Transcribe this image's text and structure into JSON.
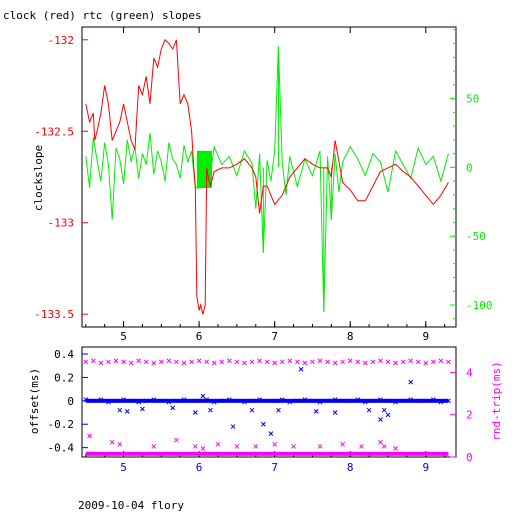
{
  "title": "clock (red) rtc (green) slopes",
  "footer": "2009-10-04 flory",
  "colors": {
    "frame": "#000000",
    "clock": "#ff0000",
    "rtc": "#00ee00",
    "offset": "#0000ff",
    "rnd_trip": "#ff00ff"
  },
  "chart_data": [
    {
      "type": "line",
      "title": "clock (red) rtc (green) slopes",
      "xlabel": "",
      "ylabel": "clockslope",
      "y2label": "",
      "xlim": [
        4.45,
        9.4
      ],
      "ylim": [
        -133.57,
        -131.93
      ],
      "y2lim": [
        -116,
        102
      ],
      "xticks": [
        "5",
        "6",
        "7",
        "8",
        "9"
      ],
      "yticks": [
        "-132",
        "-132.5",
        "-133",
        "-133.5"
      ],
      "y2ticks": [
        "50",
        "0",
        "-50",
        "-100"
      ],
      "series": [
        {
          "name": "clock",
          "axis": "left",
          "color": "#ff0000",
          "x": [
            4.5,
            4.55,
            4.6,
            4.62,
            4.65,
            4.7,
            4.75,
            4.8,
            4.85,
            4.9,
            4.95,
            5.0,
            5.05,
            5.1,
            5.15,
            5.2,
            5.25,
            5.3,
            5.35,
            5.4,
            5.45,
            5.5,
            5.55,
            5.6,
            5.65,
            5.7,
            5.75,
            5.8,
            5.85,
            5.9,
            5.93,
            5.95,
            5.97,
            6.0,
            6.02,
            6.05,
            6.08,
            6.1,
            6.12,
            6.15,
            6.2,
            6.3,
            6.4,
            6.5,
            6.6,
            6.7,
            6.75,
            6.8,
            6.85,
            6.9,
            7.0,
            7.1,
            7.2,
            7.3,
            7.4,
            7.5,
            7.6,
            7.7,
            7.75,
            7.8,
            7.9,
            8.0,
            8.1,
            8.2,
            8.3,
            8.4,
            8.5,
            8.6,
            8.7,
            8.8,
            8.9,
            9.0,
            9.1,
            9.2,
            9.3
          ],
          "y": [
            -132.35,
            -132.45,
            -132.4,
            -132.55,
            -132.5,
            -132.4,
            -132.25,
            -132.35,
            -132.55,
            -132.5,
            -132.45,
            -132.35,
            -132.45,
            -132.55,
            -132.6,
            -132.25,
            -132.3,
            -132.2,
            -132.35,
            -132.1,
            -132.15,
            -132.05,
            -132.0,
            -132.02,
            -132.05,
            -132.0,
            -132.35,
            -132.3,
            -132.35,
            -132.5,
            -132.7,
            -132.8,
            -133.4,
            -133.48,
            -133.45,
            -133.5,
            -133.45,
            -132.7,
            -132.75,
            -132.8,
            -132.72,
            -132.7,
            -132.7,
            -132.68,
            -132.65,
            -132.7,
            -132.75,
            -132.95,
            -132.8,
            -132.8,
            -132.9,
            -132.85,
            -132.75,
            -132.7,
            -132.65,
            -132.68,
            -132.7,
            -132.7,
            -132.75,
            -132.55,
            -132.78,
            -132.82,
            -132.88,
            -132.88,
            -132.8,
            -132.72,
            -132.7,
            -132.68,
            -132.72,
            -132.75,
            -132.8,
            -132.85,
            -132.9,
            -132.85,
            -132.78
          ]
        },
        {
          "name": "rtc",
          "axis": "right",
          "color": "#00ee00",
          "x": [
            4.5,
            4.55,
            4.6,
            4.65,
            4.7,
            4.75,
            4.8,
            4.85,
            4.9,
            4.95,
            5.0,
            5.05,
            5.1,
            5.15,
            5.2,
            5.25,
            5.3,
            5.35,
            5.4,
            5.45,
            5.5,
            5.55,
            5.6,
            5.65,
            5.7,
            5.75,
            5.8,
            5.85,
            5.9,
            5.95,
            6.0,
            6.05,
            6.1,
            6.15,
            6.2,
            6.3,
            6.4,
            6.5,
            6.6,
            6.7,
            6.75,
            6.8,
            6.85,
            6.9,
            6.95,
            7.0,
            7.05,
            7.1,
            7.15,
            7.2,
            7.3,
            7.4,
            7.5,
            7.6,
            7.65,
            7.7,
            7.75,
            7.8,
            7.85,
            7.9,
            8.0,
            8.1,
            8.2,
            8.3,
            8.4,
            8.5,
            8.6,
            8.7,
            8.8,
            8.9,
            9.0,
            9.1,
            9.2,
            9.3
          ],
          "y": [
            8,
            -15,
            22,
            5,
            -10,
            18,
            2,
            -38,
            14,
            6,
            -12,
            20,
            4,
            15,
            -8,
            10,
            2,
            25,
            -5,
            12,
            4,
            -10,
            18,
            6,
            2,
            -8,
            16,
            4,
            12,
            -15,
            -15,
            10,
            -15,
            -5,
            15,
            2,
            8,
            -6,
            12,
            3,
            -30,
            10,
            -62,
            5,
            -10,
            12,
            88,
            4,
            -20,
            8,
            -14,
            6,
            -6,
            12,
            -105,
            8,
            -38,
            10,
            -18,
            4,
            15,
            6,
            -6,
            10,
            4,
            -18,
            12,
            2,
            -8,
            14,
            2,
            8,
            -10,
            10
          ]
        }
      ]
    },
    {
      "type": "scatter",
      "xlabel": "",
      "ylabel": "offset(ms)",
      "y2label": "rnd-trip(ms)",
      "xlim": [
        4.45,
        9.4
      ],
      "ylim": [
        -0.48,
        0.46
      ],
      "y2lim": [
        0,
        5.2
      ],
      "xticks": [
        "5",
        "6",
        "7",
        "8",
        "9"
      ],
      "yticks": [
        "0.4",
        "0.2",
        "0",
        "-0.2",
        "-0.4"
      ],
      "y2ticks": [
        "4",
        "2",
        "0"
      ],
      "series": [
        {
          "name": "offset",
          "axis": "left",
          "color": "#0000ff",
          "marker": "x",
          "x": [
            4.5,
            4.6,
            4.7,
            4.8,
            4.9,
            5.0,
            5.1,
            5.2,
            5.3,
            5.4,
            5.5,
            5.6,
            5.7,
            5.8,
            5.9,
            6.0,
            6.1,
            6.2,
            6.3,
            6.4,
            6.5,
            6.6,
            6.7,
            6.8,
            6.9,
            7.0,
            7.1,
            7.2,
            7.3,
            7.4,
            7.5,
            7.6,
            7.7,
            7.8,
            7.9,
            8.0,
            8.1,
            8.2,
            8.3,
            8.4,
            8.5,
            8.6,
            8.7,
            8.8,
            8.9,
            9.0,
            9.1,
            9.2,
            9.3,
            4.95,
            5.05,
            5.25,
            5.65,
            5.95,
            6.05,
            6.15,
            6.45,
            6.7,
            6.85,
            6.95,
            7.05,
            7.35,
            7.55,
            7.8,
            8.25,
            8.4,
            8.45,
            8.5,
            8.8
          ],
          "y": [
            0.01,
            0.0,
            0.01,
            -0.01,
            0.0,
            0.01,
            0.0,
            -0.01,
            0.0,
            0.01,
            0.0,
            -0.01,
            0.0,
            0.01,
            0.0,
            0.0,
            0.01,
            -0.01,
            0.0,
            0.01,
            0.0,
            -0.01,
            0.0,
            0.01,
            0.0,
            0.0,
            0.01,
            -0.01,
            0.0,
            0.01,
            0.0,
            -0.01,
            0.0,
            0.01,
            0.0,
            0.0,
            0.01,
            -0.01,
            0.0,
            0.01,
            0.0,
            -0.01,
            0.0,
            0.01,
            0.0,
            0.0,
            0.01,
            -0.01,
            0.0,
            -0.08,
            -0.09,
            -0.07,
            -0.06,
            -0.1,
            0.04,
            -0.08,
            -0.22,
            -0.08,
            -0.2,
            -0.28,
            -0.08,
            0.27,
            -0.09,
            -0.1,
            -0.08,
            -0.16,
            -0.08,
            -0.12,
            0.16
          ]
        },
        {
          "name": "rnd-trip",
          "axis": "right",
          "color": "#ff00ff",
          "marker": "x",
          "x": [
            4.5,
            4.6,
            4.7,
            4.8,
            4.9,
            5.0,
            5.1,
            5.2,
            5.3,
            5.4,
            5.5,
            5.6,
            5.7,
            5.8,
            5.9,
            6.0,
            6.1,
            6.2,
            6.3,
            6.4,
            6.5,
            6.6,
            6.7,
            6.8,
            6.9,
            7.0,
            7.1,
            7.2,
            7.3,
            7.4,
            7.5,
            7.6,
            7.7,
            7.8,
            7.9,
            8.0,
            8.1,
            8.2,
            8.3,
            8.4,
            8.5,
            8.6,
            8.7,
            8.8,
            8.9,
            9.0,
            9.1,
            9.2,
            9.3,
            4.55,
            4.85,
            4.95,
            5.4,
            5.7,
            5.95,
            6.05,
            6.25,
            6.5,
            6.75,
            7.0,
            7.25,
            7.6,
            7.9,
            8.15,
            8.4,
            8.45,
            8.6
          ],
          "y": [
            4.5,
            4.55,
            4.45,
            4.5,
            4.55,
            4.5,
            4.45,
            4.55,
            4.5,
            4.45,
            4.5,
            4.55,
            4.5,
            4.45,
            4.5,
            4.55,
            4.5,
            4.45,
            4.5,
            4.55,
            4.5,
            4.45,
            4.5,
            4.55,
            4.5,
            4.45,
            4.5,
            4.55,
            4.5,
            4.45,
            4.5,
            4.55,
            4.5,
            4.45,
            4.5,
            4.55,
            4.5,
            4.45,
            4.5,
            4.55,
            4.5,
            4.45,
            4.5,
            4.55,
            4.5,
            4.45,
            4.5,
            4.55,
            4.5,
            1.0,
            0.7,
            0.6,
            0.5,
            0.8,
            0.5,
            0.4,
            0.6,
            0.5,
            0.5,
            0.6,
            0.5,
            0.5,
            0.6,
            0.5,
            0.7,
            0.5,
            0.4
          ]
        },
        {
          "name": "rnd-trip-baseline",
          "axis": "right",
          "color": "#ff00ff",
          "marker": "band",
          "x": [
            4.5,
            9.3
          ],
          "y": [
            0.15,
            0.15
          ]
        }
      ]
    }
  ]
}
